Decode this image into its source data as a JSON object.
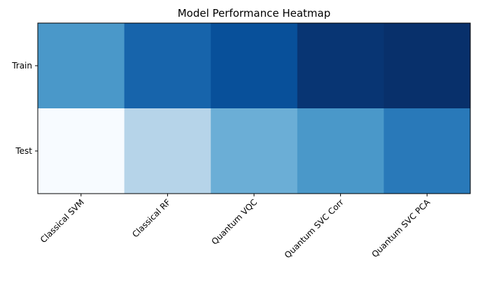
{
  "chart_data": {
    "type": "heatmap",
    "title": "Model Performance Heatmap",
    "xlabel": "",
    "ylabel": "",
    "colormap": "Blues",
    "x_categories": [
      "Classical SVM",
      "Classical RF",
      "Quantum VQC",
      "Quantum SVC Corr",
      "Quantum SVC PCA"
    ],
    "y_categories": [
      "Train",
      "Test"
    ],
    "values": [
      [
        0.6,
        0.8,
        0.88,
        0.98,
        1.0
      ],
      [
        0.0,
        0.3,
        0.5,
        0.6,
        0.72
      ]
    ],
    "value_range": [
      0,
      1
    ],
    "grid": false,
    "legend": "none",
    "x_tick_rotation_deg": 45
  }
}
